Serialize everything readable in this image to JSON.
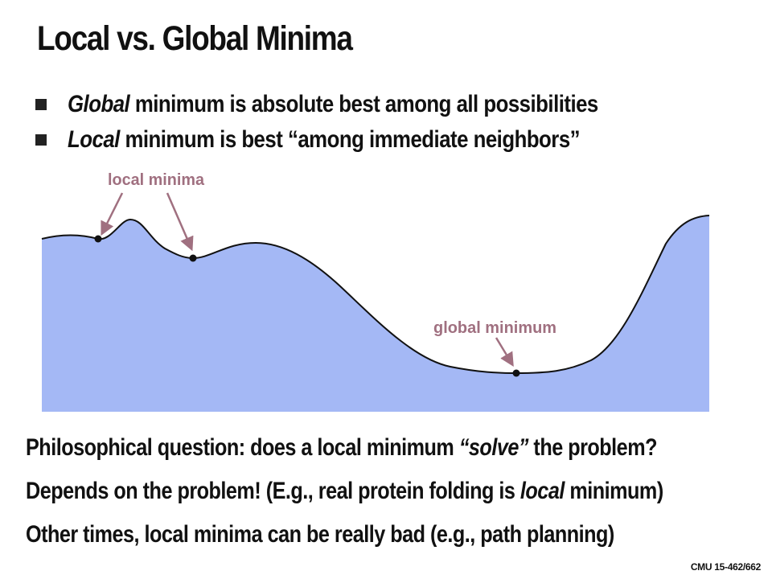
{
  "slide": {
    "title": "Local vs. Global Minima",
    "bullets": [
      {
        "italic": "Global",
        "rest": " minimum is absolute best among all possibilities"
      },
      {
        "italic": "Local",
        "rest": " minimum is best “among immediate neighbors”"
      }
    ],
    "diagram": {
      "local_label": "local minima",
      "global_label": "global minimum",
      "fill_color": "#a4b8f5",
      "curve_color": "#111111",
      "annotation_color": "#a07080"
    },
    "questions": [
      {
        "pre": "Philosophical question: does a local minimum ",
        "em": "“solve”",
        "post": " the problem?"
      },
      {
        "pre": "Depends on the problem! (E.g., real protein folding is ",
        "em": "local",
        "post": " minimum)"
      },
      {
        "pre": "Other times, local minima can be really bad (e.g., path planning)",
        "em": "",
        "post": ""
      }
    ],
    "footer": "CMU 15-462/662"
  }
}
